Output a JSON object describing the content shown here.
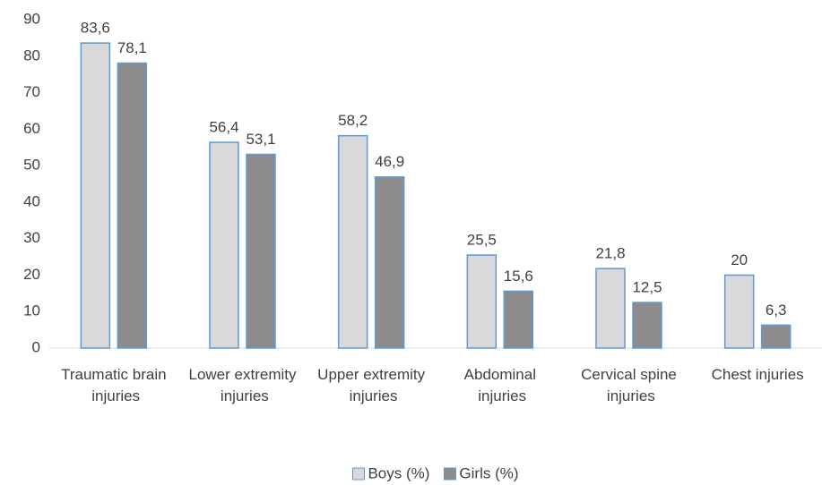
{
  "chart_data": {
    "type": "bar",
    "categories": [
      "Traumatic brain injuries",
      "Lower extremity injuries",
      "Upper extremity injuries",
      "Abdominal injuries",
      "Cervical spine injuries",
      "Chest injuries"
    ],
    "series": [
      {
        "name": "Boys (%)",
        "color": "#d9d9d9",
        "values": [
          83.6,
          56.4,
          58.2,
          25.5,
          21.8,
          20
        ],
        "value_labels": [
          "83,6",
          "56,4",
          "58,2",
          "25,5",
          "21,8",
          "20"
        ]
      },
      {
        "name": "Girls (%)",
        "color": "#8c8c8c",
        "values": [
          78.1,
          53.1,
          46.9,
          15.6,
          12.5,
          6.3
        ],
        "value_labels": [
          "78,1",
          "53,1",
          "46,9",
          "15,6",
          "12,5",
          "6,3"
        ]
      }
    ],
    "ylim": [
      0,
      90
    ],
    "yticks": [
      0,
      10,
      20,
      30,
      40,
      50,
      60,
      70,
      80,
      90
    ],
    "grid": false,
    "legend": "bottom"
  }
}
